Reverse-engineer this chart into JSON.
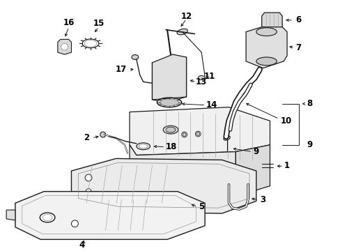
{
  "bg_color": "#ffffff",
  "line_color": "#1a1a1a",
  "label_color": "#000000",
  "fig_width": 4.89,
  "fig_height": 3.6,
  "dpi": 100,
  "font_size": 8.5
}
